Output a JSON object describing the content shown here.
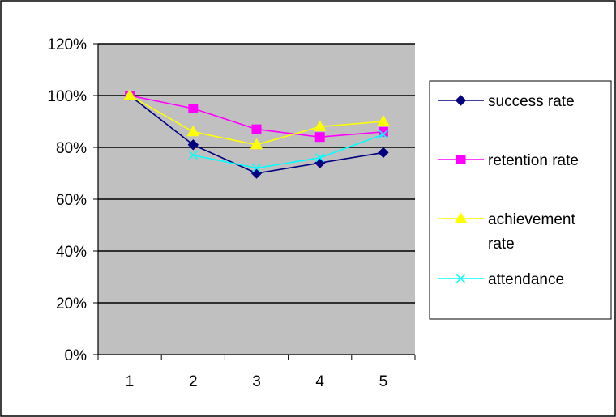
{
  "chart_data": {
    "type": "line",
    "title": "",
    "xlabel": "",
    "ylabel": "",
    "x": [
      1,
      2,
      3,
      4,
      5
    ],
    "ylim": [
      0,
      1.2
    ],
    "y_ticks": [
      "0%",
      "20%",
      "40%",
      "60%",
      "80%",
      "100%",
      "120%"
    ],
    "y_tick_values": [
      0,
      0.2,
      0.4,
      0.6,
      0.8,
      1.0,
      1.2
    ],
    "x_ticks": [
      "1",
      "2",
      "3",
      "4",
      "5"
    ],
    "grid": "horizontal major gridlines",
    "plot_background": "#c0c0c0",
    "legend_position": "right",
    "series": [
      {
        "name": "success rate",
        "color": "#000080",
        "marker": "diamond",
        "values": [
          1.0,
          0.81,
          0.7,
          0.74,
          0.78
        ]
      },
      {
        "name": "retention rate",
        "color": "#ff00ff",
        "marker": "square",
        "values": [
          1.0,
          0.95,
          0.87,
          0.84,
          0.86
        ]
      },
      {
        "name": "achievement rate",
        "color": "#ffff00",
        "marker": "triangle",
        "values": [
          1.0,
          0.86,
          0.81,
          0.88,
          0.9
        ]
      },
      {
        "name": "attendance",
        "color": "#00ffff",
        "marker": "x",
        "values": [
          null,
          0.77,
          0.72,
          0.76,
          0.85
        ]
      }
    ]
  }
}
